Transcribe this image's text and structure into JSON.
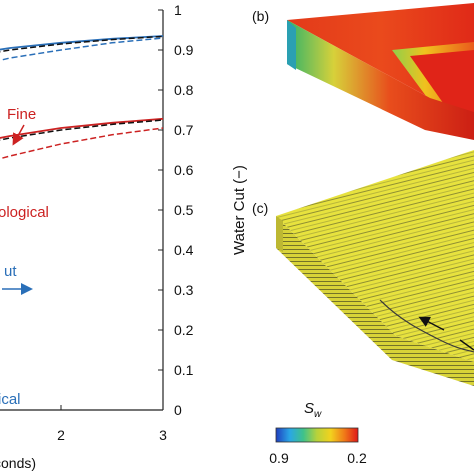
{
  "chart_data": {
    "type": "line",
    "xlabel_fragment": "conds)",
    "ylabel": "Water Cut (−)",
    "x_ticks": [
      "2",
      "3"
    ],
    "y_ticks": [
      "0",
      "0.1",
      "0.2",
      "0.3",
      "0.4",
      "0.5",
      "0.6",
      "0.7",
      "0.8",
      "0.9",
      "1"
    ],
    "xlim": [
      1.0,
      3.0
    ],
    "ylim": [
      0,
      1
    ],
    "annotations": {
      "fine": "Fine",
      "topological": "ological",
      "cut": "ut",
      "critical": "ical"
    },
    "series": [
      {
        "style": "solid",
        "color": "#2a6fb8",
        "x": [
          1.0,
          1.5,
          2.0,
          2.5,
          3.0
        ],
        "y": [
          0.885,
          0.905,
          0.918,
          0.928,
          0.935
        ]
      },
      {
        "style": "dashed",
        "color": "#111111",
        "x": [
          1.0,
          1.5,
          2.0,
          2.5,
          3.0
        ],
        "y": [
          0.878,
          0.9,
          0.915,
          0.926,
          0.934
        ]
      },
      {
        "style": "dashed",
        "color": "#2a6fb8",
        "x": [
          1.0,
          1.5,
          2.0,
          2.5,
          3.0
        ],
        "y": [
          0.85,
          0.88,
          0.9,
          0.918,
          0.93
        ]
      },
      {
        "style": "solid",
        "color": "#cc2222",
        "x": [
          1.0,
          1.5,
          2.0,
          2.5,
          3.0
        ],
        "y": [
          0.66,
          0.685,
          0.705,
          0.718,
          0.728
        ]
      },
      {
        "style": "dashed",
        "color": "#111111",
        "x": [
          1.0,
          1.5,
          2.0,
          2.5,
          3.0
        ],
        "y": [
          0.655,
          0.68,
          0.7,
          0.714,
          0.725
        ]
      },
      {
        "style": "dashed",
        "color": "#cc2222",
        "x": [
          1.0,
          1.5,
          2.0,
          2.5,
          3.0
        ],
        "y": [
          0.6,
          0.635,
          0.665,
          0.688,
          0.705
        ]
      }
    ]
  },
  "panels": {
    "b_label": "(b)",
    "c_label": "(c)"
  },
  "colorbar": {
    "title": "S",
    "subscript": "w",
    "min_label": "0.9",
    "max_label": "0.2",
    "colors": [
      "#1f3fbf",
      "#2aa6e6",
      "#3ec28a",
      "#b8d23a",
      "#f2d21e",
      "#f07a18",
      "#e01818"
    ]
  }
}
